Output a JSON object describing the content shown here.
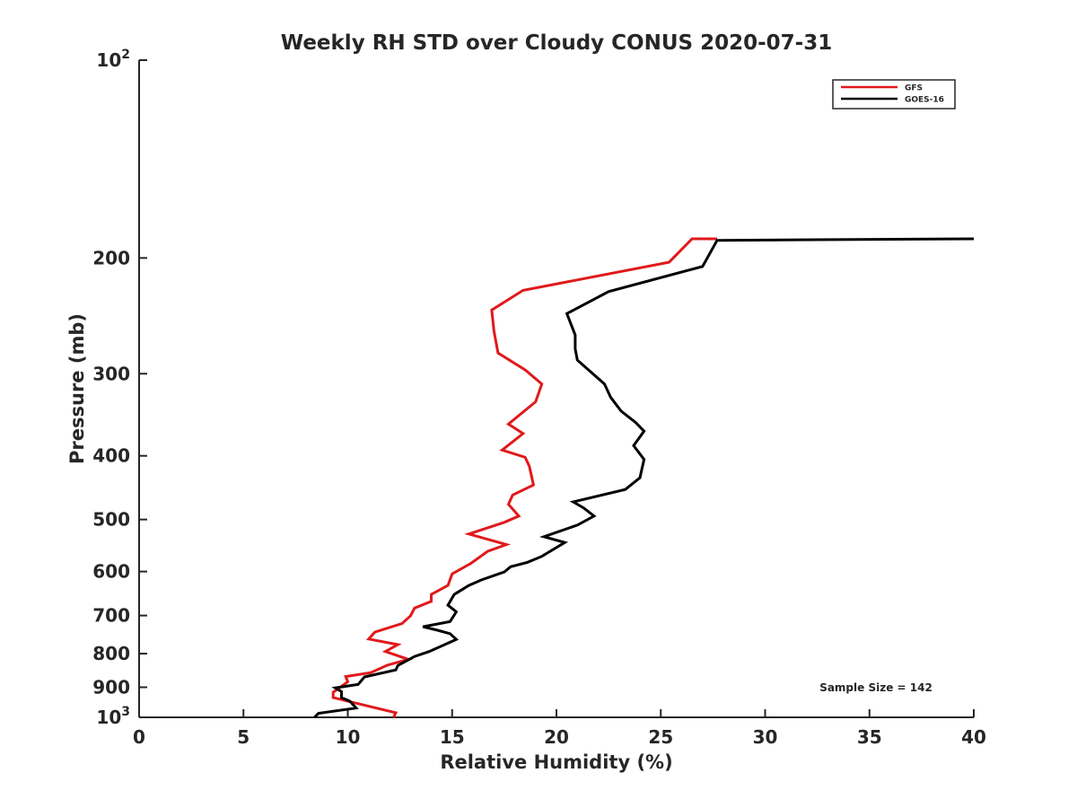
{
  "chart_data": {
    "type": "line",
    "title": "Weekly RH STD over Cloudy CONUS 2020-07-31",
    "xlabel": "Relative Humidity (%)",
    "ylabel": "Pressure (mb)",
    "xlim": [
      0,
      40
    ],
    "ylim": [
      100,
      1000
    ],
    "y_scale": "log",
    "y_reversed": true,
    "grid": false,
    "legend_position": "top-right",
    "x_ticks": [
      0,
      5,
      10,
      15,
      20,
      25,
      30,
      35,
      40
    ],
    "x_tick_labels": [
      "0",
      "5",
      "10",
      "15",
      "20",
      "25",
      "30",
      "35",
      "40"
    ],
    "y_ticks": [
      100,
      200,
      300,
      400,
      500,
      600,
      700,
      800,
      900,
      1000
    ],
    "y_tick_labels": [
      {
        "base": "10",
        "exp": "2"
      },
      {
        "base": "200",
        "exp": ""
      },
      {
        "base": "300",
        "exp": ""
      },
      {
        "base": "400",
        "exp": ""
      },
      {
        "base": "500",
        "exp": ""
      },
      {
        "base": "600",
        "exp": ""
      },
      {
        "base": "700",
        "exp": ""
      },
      {
        "base": "800",
        "exp": ""
      },
      {
        "base": "900",
        "exp": ""
      },
      {
        "base": "10",
        "exp": "3"
      }
    ],
    "annotation": "Sample Size = 142",
    "series": [
      {
        "name": "GFS",
        "color": "#e0191b",
        "points": [
          [
            12.2,
            1000
          ],
          [
            12.3,
            984
          ],
          [
            10.3,
            950
          ],
          [
            9.3,
            933
          ],
          [
            9.3,
            916
          ],
          [
            10.0,
            883
          ],
          [
            9.9,
            867
          ],
          [
            11.1,
            855
          ],
          [
            11.9,
            833
          ],
          [
            12.9,
            816
          ],
          [
            11.8,
            794
          ],
          [
            12.4,
            775
          ],
          [
            11.0,
            760
          ],
          [
            11.3,
            742
          ],
          [
            12.6,
            720
          ],
          [
            13.0,
            701
          ],
          [
            13.2,
            682
          ],
          [
            14.0,
            666
          ],
          [
            14.0,
            650
          ],
          [
            14.8,
            630
          ],
          [
            15.0,
            605
          ],
          [
            15.9,
            583
          ],
          [
            16.7,
            559
          ],
          [
            17.6,
            546
          ],
          [
            15.8,
            526
          ],
          [
            17.5,
            505
          ],
          [
            18.2,
            494
          ],
          [
            17.7,
            474
          ],
          [
            17.9,
            459
          ],
          [
            18.9,
            443
          ],
          [
            18.7,
            415
          ],
          [
            18.5,
            402
          ],
          [
            17.4,
            392
          ],
          [
            18.4,
            370
          ],
          [
            17.7,
            358
          ],
          [
            19.0,
            331
          ],
          [
            19.3,
            311
          ],
          [
            18.5,
            296
          ],
          [
            17.2,
            279
          ],
          [
            17.0,
            258
          ],
          [
            16.9,
            240
          ],
          [
            18.4,
            224
          ],
          [
            25.4,
            203
          ],
          [
            26.5,
            187
          ],
          [
            27.7,
            187
          ]
        ]
      },
      {
        "name": "GOES-16",
        "color": "#000000",
        "points": [
          [
            8.4,
            1000
          ],
          [
            8.6,
            986
          ],
          [
            10.4,
            968
          ],
          [
            10.1,
            945
          ],
          [
            9.7,
            933
          ],
          [
            9.7,
            914
          ],
          [
            9.4,
            902
          ],
          [
            10.5,
            891
          ],
          [
            10.8,
            868
          ],
          [
            12.3,
            847
          ],
          [
            12.4,
            834
          ],
          [
            13.2,
            808
          ],
          [
            13.9,
            794
          ],
          [
            15.2,
            761
          ],
          [
            14.9,
            746
          ],
          [
            14.3,
            737
          ],
          [
            13.6,
            728
          ],
          [
            14.9,
            715
          ],
          [
            15.2,
            691
          ],
          [
            14.8,
            675
          ],
          [
            15.1,
            650
          ],
          [
            15.8,
            630
          ],
          [
            16.4,
            618
          ],
          [
            17.5,
            601
          ],
          [
            17.8,
            590
          ],
          [
            18.6,
            581
          ],
          [
            19.3,
            569
          ],
          [
            20.4,
            542
          ],
          [
            19.4,
            531
          ],
          [
            21.0,
            510
          ],
          [
            21.8,
            494
          ],
          [
            21.3,
            480
          ],
          [
            20.8,
            470
          ],
          [
            23.3,
            450
          ],
          [
            24.0,
            432
          ],
          [
            24.2,
            405
          ],
          [
            23.7,
            386
          ],
          [
            24.2,
            367
          ],
          [
            23.8,
            356
          ],
          [
            23.1,
            342
          ],
          [
            22.6,
            326
          ],
          [
            22.3,
            311
          ],
          [
            21.0,
            286
          ],
          [
            20.9,
            275
          ],
          [
            20.9,
            262
          ],
          [
            20.5,
            243
          ],
          [
            22.5,
            225
          ],
          [
            27.0,
            206
          ],
          [
            27.7,
            188
          ],
          [
            40.0,
            187
          ]
        ]
      }
    ]
  }
}
